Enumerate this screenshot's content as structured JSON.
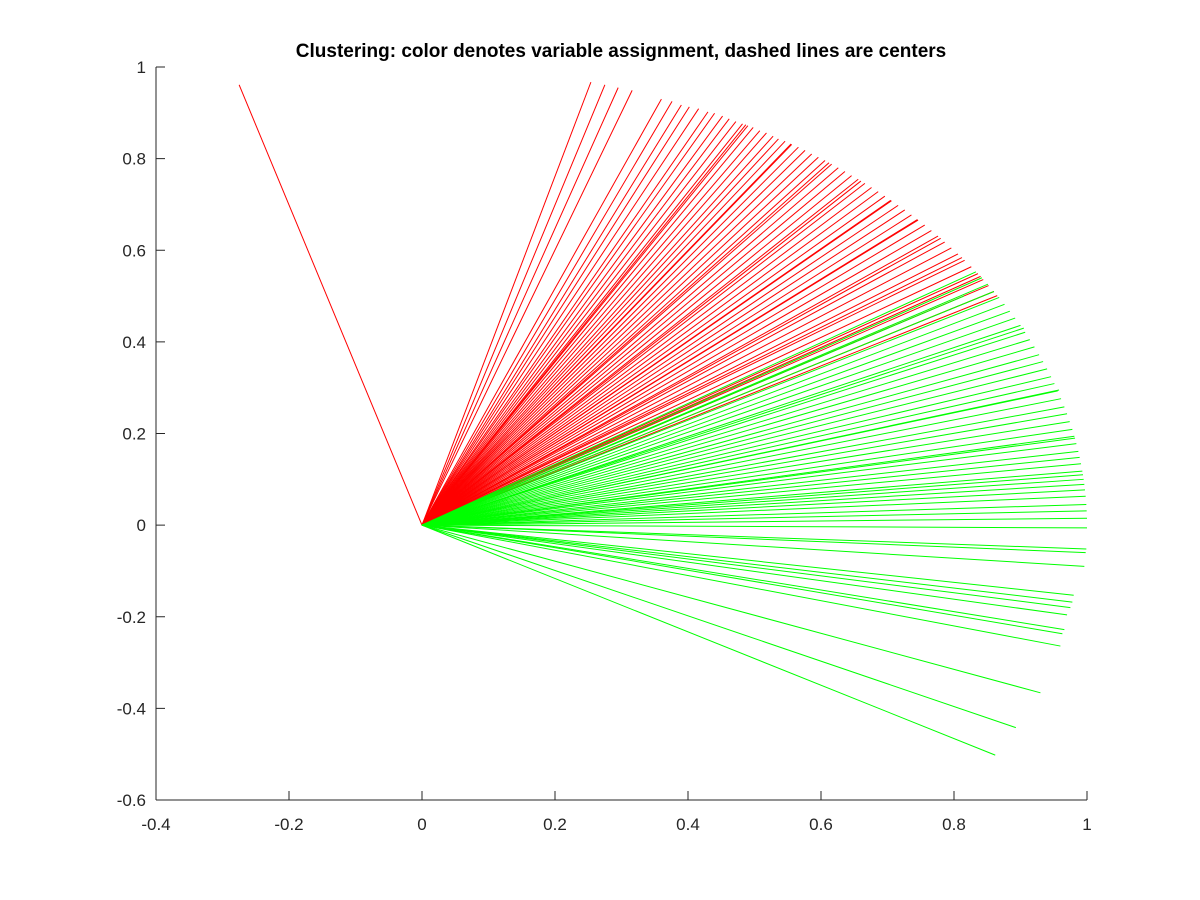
{
  "chart_data": {
    "type": "line",
    "title": "Clustering: color denotes variable assignment, dashed lines are centers",
    "xlabel": "",
    "ylabel": "",
    "xlim": [
      -0.4,
      1
    ],
    "ylim": [
      -0.6,
      1
    ],
    "x_ticks": [
      "-0.4",
      "-0.2",
      "0",
      "0.2",
      "0.4",
      "0.6",
      "0.8",
      "1"
    ],
    "y_ticks": [
      "1",
      "0.8",
      "0.6",
      "0.4",
      "0.2",
      "0",
      "-0.2",
      "-0.4",
      "-0.6"
    ],
    "grid": false,
    "legend": "none",
    "box": "left-bottom axes only",
    "colors": {
      "cluster_1": "#ff0000",
      "cluster_2": "#00ff00",
      "text": "#262626"
    },
    "series": [
      {
        "cluster": 1,
        "color": "#ff0000",
        "line_style": "solid",
        "note_segments_from_origin": true,
        "endpoints": [
          [
            -0.275,
            0.961
          ],
          [
            0.254,
            0.967
          ],
          [
            0.275,
            0.961
          ],
          [
            0.295,
            0.955
          ],
          [
            0.316,
            0.949
          ],
          [
            0.36,
            0.93
          ],
          [
            0.376,
            0.925
          ],
          [
            0.39,
            0.917
          ],
          [
            0.402,
            0.913
          ],
          [
            0.416,
            0.909
          ],
          [
            0.43,
            0.902
          ],
          [
            0.44,
            0.899
          ],
          [
            0.452,
            0.893
          ],
          [
            0.462,
            0.887
          ],
          [
            0.472,
            0.881
          ],
          [
            0.482,
            0.876
          ],
          [
            0.49,
            0.872
          ],
          [
            0.498,
            0.868
          ],
          [
            0.508,
            0.861
          ],
          [
            0.518,
            0.856
          ],
          [
            0.528,
            0.849
          ],
          [
            0.536,
            0.843
          ],
          [
            0.546,
            0.838
          ],
          [
            0.556,
            0.831
          ],
          [
            0.566,
            0.825
          ],
          [
            0.576,
            0.818
          ],
          [
            0.586,
            0.81
          ],
          [
            0.596,
            0.803
          ],
          [
            0.606,
            0.796
          ],
          [
            0.616,
            0.788
          ],
          [
            0.626,
            0.78
          ],
          [
            0.636,
            0.772
          ],
          [
            0.646,
            0.763
          ],
          [
            0.656,
            0.755
          ],
          [
            0.666,
            0.746
          ],
          [
            0.676,
            0.737
          ],
          [
            0.686,
            0.728
          ],
          [
            0.696,
            0.718
          ],
          [
            0.706,
            0.708
          ],
          [
            0.716,
            0.698
          ],
          [
            0.726,
            0.688
          ],
          [
            0.736,
            0.677
          ],
          [
            0.746,
            0.666
          ],
          [
            0.756,
            0.655
          ],
          [
            0.766,
            0.643
          ],
          [
            0.776,
            0.631
          ],
          [
            0.786,
            0.618
          ],
          [
            0.796,
            0.605
          ],
          [
            0.806,
            0.592
          ],
          [
            0.816,
            0.578
          ],
          [
            0.826,
            0.564
          ],
          [
            0.836,
            0.549
          ],
          [
            0.844,
            0.536
          ],
          [
            0.852,
            0.523
          ],
          [
            0.86,
            0.51
          ],
          [
            0.487,
            0.874
          ],
          [
            0.555,
            0.832
          ],
          [
            0.612,
            0.791
          ],
          [
            0.66,
            0.751
          ],
          [
            0.705,
            0.709
          ],
          [
            0.745,
            0.667
          ],
          [
            0.78,
            0.626
          ],
          [
            0.812,
            0.584
          ],
          [
            0.84,
            0.543
          ],
          [
            0.865,
            0.501
          ]
        ]
      },
      {
        "cluster": 2,
        "color": "#00ff00",
        "line_style": "solid",
        "note_segments_from_origin": true,
        "endpoints": [
          [
            0.833,
            0.553
          ],
          [
            0.842,
            0.54
          ],
          [
            0.851,
            0.526
          ],
          [
            0.86,
            0.51
          ],
          [
            0.868,
            0.497
          ],
          [
            0.876,
            0.482
          ],
          [
            0.884,
            0.467
          ],
          [
            0.892,
            0.452
          ],
          [
            0.9,
            0.436
          ],
          [
            0.907,
            0.421
          ],
          [
            0.914,
            0.405
          ],
          [
            0.921,
            0.389
          ],
          [
            0.928,
            0.372
          ],
          [
            0.934,
            0.357
          ],
          [
            0.94,
            0.341
          ],
          [
            0.946,
            0.324
          ],
          [
            0.951,
            0.309
          ],
          [
            0.956,
            0.293
          ],
          [
            0.961,
            0.276
          ],
          [
            0.966,
            0.258
          ],
          [
            0.97,
            0.243
          ],
          [
            0.974,
            0.226
          ],
          [
            0.978,
            0.209
          ],
          [
            0.981,
            0.194
          ],
          [
            0.984,
            0.178
          ],
          [
            0.987,
            0.161
          ],
          [
            0.989,
            0.148
          ],
          [
            0.991,
            0.134
          ],
          [
            0.993,
            0.118
          ],
          [
            0.995,
            0.1
          ],
          [
            0.996,
            0.089
          ],
          [
            0.997,
            0.077
          ],
          [
            0.998,
            0.063
          ],
          [
            0.999,
            0.045
          ],
          [
            0.9995,
            0.031
          ],
          [
            1.0,
            0.015
          ],
          [
            1.0,
            -0.006
          ],
          [
            0.999,
            -0.052
          ],
          [
            0.998,
            -0.06
          ],
          [
            0.996,
            -0.09
          ],
          [
            0.98,
            -0.153
          ],
          [
            0.978,
            -0.168
          ],
          [
            0.975,
            -0.18
          ],
          [
            0.97,
            -0.196
          ],
          [
            0.966,
            -0.228
          ],
          [
            0.963,
            -0.237
          ],
          [
            0.96,
            -0.264
          ],
          [
            0.93,
            -0.366
          ],
          [
            0.893,
            -0.442
          ],
          [
            0.862,
            -0.502
          ],
          [
            0.815,
            0.5
          ],
          [
            0.905,
            0.43
          ],
          [
            0.958,
            0.295
          ],
          [
            0.982,
            0.19
          ],
          [
            0.994,
            0.11
          ]
        ]
      }
    ]
  }
}
